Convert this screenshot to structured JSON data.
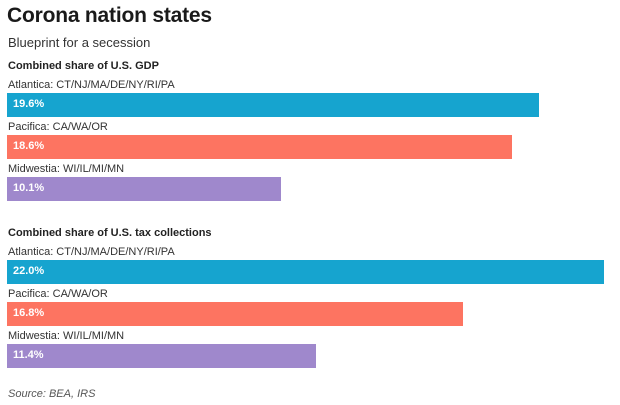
{
  "chart_data": [
    {
      "type": "bar",
      "orientation": "horizontal",
      "title": "Combined share of U.S. GDP",
      "categories": [
        "Atlantica: CT/NJ/MA/DE/NY/RI/PA",
        "Pacifica: CA/WA/OR",
        "Midwestia: WI/IL/MI/MN"
      ],
      "values": [
        19.6,
        18.6,
        10.1
      ],
      "value_labels": [
        "19.6%",
        "18.6%",
        "10.1%"
      ],
      "colors": [
        "#16a4cf",
        "#fd7461",
        "#9f88cc"
      ],
      "xlim": [
        0,
        22.0
      ],
      "grid": false,
      "legend": "none"
    },
    {
      "type": "bar",
      "orientation": "horizontal",
      "title": "Combined share of U.S. tax collections",
      "categories": [
        "Atlantica: CT/NJ/MA/DE/NY/RI/PA",
        "Pacifica: CA/WA/OR",
        "Midwestia: WI/IL/MI/MN"
      ],
      "values": [
        22.0,
        16.8,
        11.4
      ],
      "value_labels": [
        "22.0%",
        "16.8%",
        "11.4%"
      ],
      "colors": [
        "#16a4cf",
        "#fd7461",
        "#9f88cc"
      ],
      "xlim": [
        0,
        22.0
      ],
      "grid": false,
      "legend": "none"
    }
  ],
  "header": {
    "title": "Corona nation states",
    "subtitle": "Blueprint for a secession"
  },
  "footer": {
    "source": "Source: BEA, IRS"
  }
}
